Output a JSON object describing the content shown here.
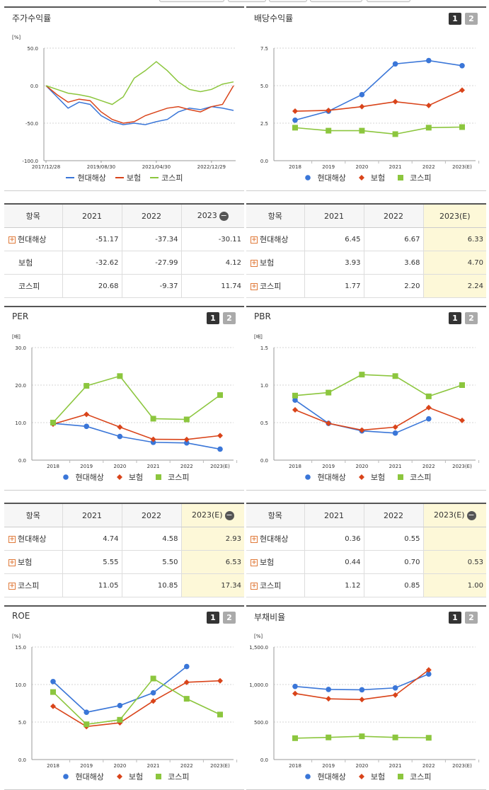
{
  "panels": {
    "p_stock": {
      "title": "주가수익률",
      "btn1": "",
      "btn2": ""
    },
    "p_div": {
      "title": "배당수익률",
      "btn1": "1",
      "btn2": "2"
    },
    "p_per": {
      "title": "PER",
      "btn1": "1",
      "btn2": "2"
    },
    "p_pbr": {
      "title": "PBR",
      "btn1": "1",
      "btn2": "2"
    },
    "p_roe": {
      "title": "ROE",
      "btn1": "1",
      "btn2": "2"
    },
    "p_debt": {
      "title": "부채비율",
      "btn1": "1",
      "btn2": "2"
    }
  },
  "legend": {
    "s1": "현대해상",
    "s2": "보험",
    "s3": "코스피"
  },
  "colors": {
    "s1": "#3a76d8",
    "s2": "#d9441a",
    "s3": "#8cc63e"
  },
  "tables": {
    "t_stock": {
      "head": [
        "항목",
        "2021",
        "2022",
        "2023"
      ],
      "minus": "−",
      "hl": false,
      "rows": [
        {
          "label": "현대해상",
          "plus": "+",
          "v": [
            "-51.17",
            "-37.34",
            "-30.11"
          ]
        },
        {
          "label": "보험",
          "plus": "",
          "v": [
            "-32.62",
            "-27.99",
            "4.12"
          ]
        },
        {
          "label": "코스피",
          "plus": "",
          "v": [
            "20.68",
            "-9.37",
            "11.74"
          ]
        }
      ]
    },
    "t_div": {
      "head": [
        "항목",
        "2021",
        "2022",
        "2023(E)"
      ],
      "minus": "",
      "hl": true,
      "rows": [
        {
          "label": "현대해상",
          "plus": "+",
          "v": [
            "6.45",
            "6.67",
            "6.33"
          ]
        },
        {
          "label": "보험",
          "plus": "+",
          "v": [
            "3.93",
            "3.68",
            "4.70"
          ]
        },
        {
          "label": "코스피",
          "plus": "+",
          "v": [
            "1.77",
            "2.20",
            "2.24"
          ]
        }
      ]
    },
    "t_per": {
      "head": [
        "항목",
        "2021",
        "2022",
        "2023(E)"
      ],
      "minus": "−",
      "hl": true,
      "rows": [
        {
          "label": "현대해상",
          "plus": "+",
          "v": [
            "4.74",
            "4.58",
            "2.93"
          ]
        },
        {
          "label": "보험",
          "plus": "+",
          "v": [
            "5.55",
            "5.50",
            "6.53"
          ]
        },
        {
          "label": "코스피",
          "plus": "+",
          "v": [
            "11.05",
            "10.85",
            "17.34"
          ]
        }
      ]
    },
    "t_pbr": {
      "head": [
        "항목",
        "2021",
        "2022",
        "2023(E)"
      ],
      "minus": "−",
      "hl": true,
      "rows": [
        {
          "label": "현대해상",
          "plus": "+",
          "v": [
            "0.36",
            "0.55",
            ""
          ]
        },
        {
          "label": "보험",
          "plus": "+",
          "v": [
            "0.44",
            "0.70",
            "0.53"
          ]
        },
        {
          "label": "코스피",
          "plus": "+",
          "v": [
            "1.12",
            "0.85",
            "1.00"
          ]
        }
      ]
    }
  },
  "chart_data": [
    {
      "id": "stock",
      "type": "line",
      "title": "주가수익률",
      "ylabel": "[%]",
      "ylim": [
        -100,
        50
      ],
      "yticks": [
        "50.0",
        "0.0",
        "-50.0",
        "-100.0"
      ],
      "xticks": [
        "2017/12/28",
        "2019/08/30",
        "2021/04/30",
        "2022/12/29"
      ],
      "x": [
        "2017/12/28",
        "2018/04",
        "2018/08",
        "2018/12",
        "2019/04",
        "2019/08/30",
        "2019/12",
        "2020/04",
        "2020/08",
        "2020/12",
        "2021/04/30",
        "2021/08",
        "2021/12",
        "2022/04",
        "2022/08",
        "2022/12/29",
        "2023/04",
        "2023/08"
      ],
      "series": [
        {
          "name": "현대해상",
          "values": [
            0,
            -15,
            -30,
            -22,
            -25,
            -40,
            -48,
            -52,
            -50,
            -52,
            -48,
            -45,
            -35,
            -30,
            -32,
            -28,
            -30,
            -33
          ]
        },
        {
          "name": "보험",
          "values": [
            0,
            -12,
            -22,
            -18,
            -20,
            -35,
            -45,
            -50,
            -48,
            -40,
            -35,
            -30,
            -28,
            -32,
            -35,
            -28,
            -25,
            0
          ]
        },
        {
          "name": "코스피",
          "values": [
            0,
            -5,
            -10,
            -12,
            -15,
            -20,
            -25,
            -15,
            10,
            20,
            32,
            20,
            5,
            -5,
            -8,
            -5,
            2,
            5
          ]
        }
      ]
    },
    {
      "id": "div",
      "type": "line",
      "title": "배당수익률",
      "ylim": [
        0,
        7.5
      ],
      "yticks": [
        "7.5",
        "5.0",
        "2.5",
        "0.0"
      ],
      "x": [
        "2018",
        "2019",
        "2020",
        "2021",
        "2022",
        "2023(E)"
      ],
      "series": [
        {
          "name": "현대해상",
          "values": [
            2.7,
            3.3,
            4.4,
            6.45,
            6.67,
            6.33
          ]
        },
        {
          "name": "보험",
          "values": [
            3.3,
            3.35,
            3.6,
            3.93,
            3.68,
            4.7
          ]
        },
        {
          "name": "코스피",
          "values": [
            2.2,
            2.0,
            2.0,
            1.77,
            2.2,
            2.24
          ]
        }
      ]
    },
    {
      "id": "per",
      "type": "line",
      "title": "PER",
      "ylabel": "[배]",
      "ylim": [
        0,
        30
      ],
      "yticks": [
        "30.0",
        "20.0",
        "10.0",
        "0.0"
      ],
      "x": [
        "2018",
        "2019",
        "2020",
        "2021",
        "2022",
        "2023(E)"
      ],
      "series": [
        {
          "name": "현대해상",
          "values": [
            9.8,
            9.0,
            6.3,
            4.74,
            4.58,
            2.93
          ]
        },
        {
          "name": "보험",
          "values": [
            9.6,
            12.2,
            8.8,
            5.55,
            5.5,
            6.53
          ]
        },
        {
          "name": "코스피",
          "values": [
            10.0,
            19.8,
            22.4,
            11.05,
            10.85,
            17.34
          ]
        }
      ]
    },
    {
      "id": "pbr",
      "type": "line",
      "title": "PBR",
      "ylabel": "[배]",
      "ylim": [
        0,
        1.5
      ],
      "yticks": [
        "1.5",
        "1.0",
        "0.5",
        "0.0"
      ],
      "x": [
        "2018",
        "2019",
        "2020",
        "2021",
        "2022",
        "2023(E)"
      ],
      "series": [
        {
          "name": "현대해상",
          "values": [
            0.8,
            0.49,
            0.39,
            0.36,
            0.55,
            null
          ]
        },
        {
          "name": "보험",
          "values": [
            0.67,
            0.49,
            0.4,
            0.44,
            0.7,
            0.53
          ]
        },
        {
          "name": "코스피",
          "values": [
            0.86,
            0.9,
            1.14,
            1.12,
            0.85,
            1.0
          ]
        }
      ]
    },
    {
      "id": "roe",
      "type": "line",
      "title": "ROE",
      "ylabel": "[%]",
      "ylim": [
        0,
        15
      ],
      "yticks": [
        "15.0",
        "10.0",
        "5.0",
        "0.0"
      ],
      "x": [
        "2018",
        "2019",
        "2020",
        "2021",
        "2022",
        "2023(E)"
      ],
      "series": [
        {
          "name": "현대해상",
          "values": [
            10.4,
            6.3,
            7.2,
            8.9,
            12.4,
            null
          ]
        },
        {
          "name": "보험",
          "values": [
            7.1,
            4.4,
            4.9,
            7.8,
            10.3,
            10.5
          ]
        },
        {
          "name": "코스피",
          "values": [
            9.0,
            4.7,
            5.3,
            10.8,
            8.1,
            6.0
          ]
        }
      ]
    },
    {
      "id": "debt",
      "type": "line",
      "title": "부채비율",
      "ylabel": "[%]",
      "ylim": [
        0,
        1500
      ],
      "yticks": [
        "1,500.0",
        "1,000.0",
        "500.0",
        "0.0"
      ],
      "x": [
        "2018",
        "2019",
        "2020",
        "2021",
        "2022",
        "2023(E)"
      ],
      "series": [
        {
          "name": "현대해상",
          "values": [
            975,
            935,
            930,
            955,
            1140,
            null
          ]
        },
        {
          "name": "보험",
          "values": [
            880,
            810,
            800,
            860,
            1195,
            null
          ]
        },
        {
          "name": "코스피",
          "values": [
            285,
            295,
            310,
            295,
            290,
            null
          ]
        }
      ]
    }
  ]
}
